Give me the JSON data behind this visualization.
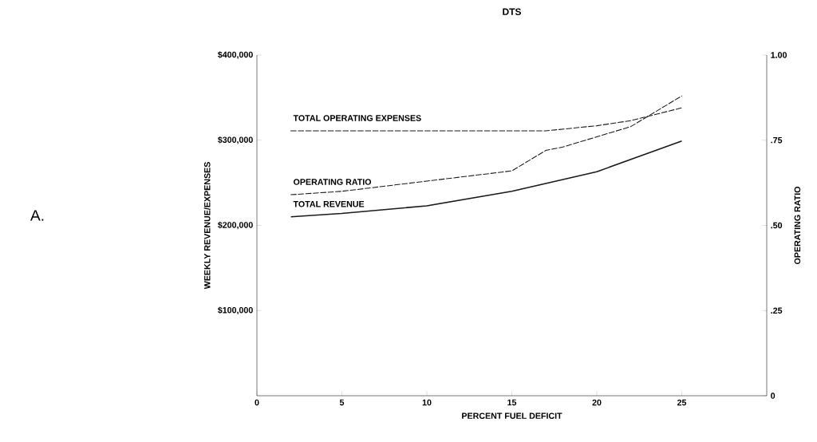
{
  "chart_data": {
    "type": "line",
    "title": "DTS",
    "xlabel": "PERCENT FUEL DEFICIT",
    "ylabel": "WEEKLY REVENUE/EXPENSES",
    "y2label": "OPERATING RATIO",
    "annotations": [
      "A."
    ],
    "xlim": [
      0,
      30
    ],
    "xticks": [
      0,
      5,
      10,
      15,
      20,
      25
    ],
    "ylim": [
      0,
      400000
    ],
    "yticks": [
      {
        "value": 100000,
        "label": "$100,000"
      },
      {
        "value": 200000,
        "label": "$200,000"
      },
      {
        "value": 300000,
        "label": "$300,000"
      },
      {
        "value": 400000,
        "label": "$400,000"
      }
    ],
    "y2lim": [
      0,
      1
    ],
    "y2ticks": [
      0,
      {
        "value": 0.25,
        "label": ".25"
      },
      {
        "value": 0.5,
        "label": ".50"
      },
      {
        "value": 0.75,
        "label": ".75"
      },
      {
        "value": 1,
        "label": "1.00"
      }
    ],
    "grid": false,
    "marker": "none",
    "series": [
      {
        "name": "TOTAL OPERATING EXPENSES",
        "color": "#1a1a1a",
        "line_style": "dashed",
        "x": [
          2,
          5,
          10,
          15,
          17,
          20,
          22,
          25
        ],
        "values": [
          311000,
          311000,
          311000,
          311000,
          311000,
          317000,
          323000,
          338000
        ]
      },
      {
        "name": "OPERATING RATIO",
        "color": "#1a1a1a",
        "line_style": "dashed",
        "axis": "y2",
        "x": [
          2,
          5,
          10,
          15,
          16,
          17,
          18,
          20,
          22,
          25
        ],
        "values": [
          0.59,
          0.6,
          0.63,
          0.66,
          0.69,
          0.72,
          0.73,
          0.76,
          0.79,
          0.88
        ]
      },
      {
        "name": "TOTAL REVENUE",
        "color": "#1a1a1a",
        "line_style": "solid",
        "x": [
          2,
          5,
          10,
          15,
          20,
          25
        ],
        "values": [
          210000,
          214000,
          223000,
          240000,
          263000,
          299000
        ]
      }
    ]
  }
}
